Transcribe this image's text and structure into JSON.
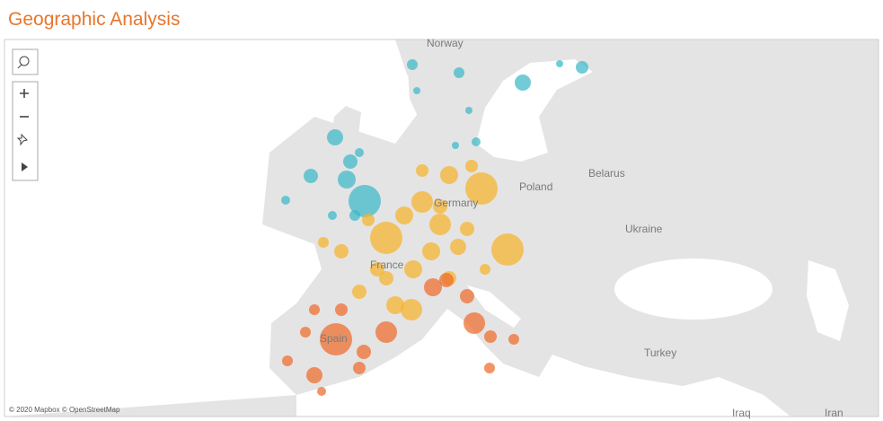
{
  "header": {
    "title": "Geographic Analysis"
  },
  "map": {
    "labels": [
      "Norway",
      "Poland",
      "Belarus",
      "Ukraine",
      "Germany",
      "France",
      "Spain",
      "Turkey",
      "Iraq",
      "Iran"
    ],
    "attribution": "© 2020 Mapbox © OpenStreetMap"
  }
}
